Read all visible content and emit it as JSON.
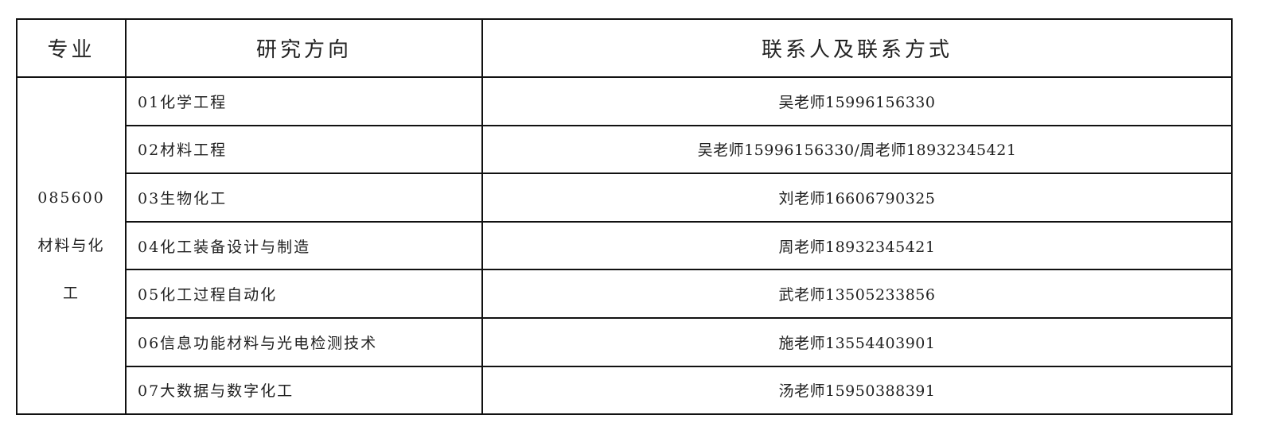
{
  "headers": {
    "major": "专业",
    "direction": "研究方向",
    "contact": "联系人及联系方式"
  },
  "major": "085600材料与化工",
  "rows": [
    {
      "direction": "01化学工程",
      "contact": "吴老师15996156330"
    },
    {
      "direction": "02材料工程",
      "contact": "吴老师15996156330/周老师18932345421"
    },
    {
      "direction": "03生物化工",
      "contact": "刘老师16606790325"
    },
    {
      "direction": "04化工装备设计与制造",
      "contact": "周老师18932345421"
    },
    {
      "direction": "05化工过程自动化",
      "contact": "武老师13505233856"
    },
    {
      "direction": "06信息功能材料与光电检测技术",
      "contact": "施老师13554403901"
    },
    {
      "direction": "07大数据与数字化工",
      "contact": "汤老师15950388391"
    }
  ]
}
